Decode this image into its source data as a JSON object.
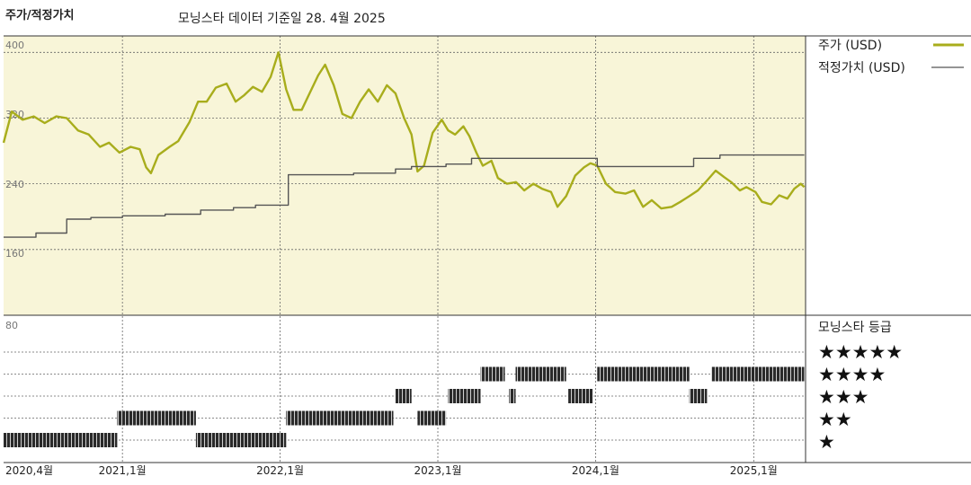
{
  "header": {
    "title": "주가/적정가치",
    "subtitle": "모닝스타 데이터 기준일 28. 4월 2025"
  },
  "chart_data": [
    {
      "type": "line",
      "title": "주가/적정가치",
      "ylim": [
        80,
        420
      ],
      "y_ticks": [
        {
          "value": 400,
          "label": "400"
        },
        {
          "value": 320,
          "label": "320"
        },
        {
          "value": 240,
          "label": "240"
        },
        {
          "value": 160,
          "label": "160"
        }
      ],
      "x_range": [
        "2020-04-01",
        "2025-05-01"
      ],
      "x_ticks": [
        {
          "date": "2020-04-01",
          "label": "2020,4월"
        },
        {
          "date": "2021-01-01",
          "label": "2021,1월"
        },
        {
          "date": "2022-01-01",
          "label": "2022,1월"
        },
        {
          "date": "2023-01-01",
          "label": "2023,1월"
        },
        {
          "date": "2024-01-01",
          "label": "2024,1월"
        },
        {
          "date": "2025-01-01",
          "label": "2025,1월"
        }
      ],
      "grid": true,
      "legend_position": "right",
      "series": [
        {
          "name": "주가 (USD)",
          "color": "#a8ad1c",
          "points": [
            [
              "2020-04-01",
              290
            ],
            [
              "2020-04-20",
              328
            ],
            [
              "2020-05-15",
              318
            ],
            [
              "2020-06-10",
              322
            ],
            [
              "2020-07-05",
              314
            ],
            [
              "2020-08-01",
              322
            ],
            [
              "2020-08-25",
              320
            ],
            [
              "2020-09-20",
              305
            ],
            [
              "2020-10-15",
              300
            ],
            [
              "2020-11-10",
              285
            ],
            [
              "2020-12-01",
              290
            ],
            [
              "2020-12-25",
              278
            ],
            [
              "2021-01-20",
              285
            ],
            [
              "2021-02-10",
              282
            ],
            [
              "2021-02-25",
              260
            ],
            [
              "2021-03-08",
              253
            ],
            [
              "2021-03-25",
              275
            ],
            [
              "2021-04-20",
              285
            ],
            [
              "2021-05-10",
              292
            ],
            [
              "2021-06-05",
              315
            ],
            [
              "2021-06-25",
              340
            ],
            [
              "2021-07-15",
              340
            ],
            [
              "2021-08-05",
              357
            ],
            [
              "2021-08-30",
              362
            ],
            [
              "2021-09-20",
              340
            ],
            [
              "2021-10-10",
              348
            ],
            [
              "2021-10-30",
              358
            ],
            [
              "2021-11-20",
              352
            ],
            [
              "2021-12-10",
              370
            ],
            [
              "2021-12-28",
              400
            ],
            [
              "2022-01-15",
              355
            ],
            [
              "2022-02-01",
              330
            ],
            [
              "2022-02-20",
              330
            ],
            [
              "2022-03-10",
              350
            ],
            [
              "2022-03-30",
              372
            ],
            [
              "2022-04-15",
              385
            ],
            [
              "2022-05-05",
              360
            ],
            [
              "2022-05-25",
              325
            ],
            [
              "2022-06-15",
              320
            ],
            [
              "2022-07-05",
              340
            ],
            [
              "2022-07-25",
              355
            ],
            [
              "2022-08-15",
              340
            ],
            [
              "2022-09-05",
              360
            ],
            [
              "2022-09-25",
              350
            ],
            [
              "2022-10-15",
              320
            ],
            [
              "2022-11-01",
              300
            ],
            [
              "2022-11-15",
              255
            ],
            [
              "2022-11-30",
              262
            ],
            [
              "2022-12-20",
              302
            ],
            [
              "2023-01-10",
              318
            ],
            [
              "2023-01-25",
              305
            ],
            [
              "2023-02-10",
              300
            ],
            [
              "2023-03-01",
              310
            ],
            [
              "2023-03-15",
              298
            ],
            [
              "2023-03-31",
              278
            ],
            [
              "2023-04-15",
              262
            ],
            [
              "2023-05-05",
              268
            ],
            [
              "2023-05-20",
              247
            ],
            [
              "2023-06-10",
              240
            ],
            [
              "2023-07-01",
              242
            ],
            [
              "2023-07-20",
              232
            ],
            [
              "2023-08-10",
              240
            ],
            [
              "2023-08-30",
              234
            ],
            [
              "2023-09-20",
              230
            ],
            [
              "2023-10-05",
              212
            ],
            [
              "2023-10-25",
              225
            ],
            [
              "2023-11-15",
              250
            ],
            [
              "2023-12-05",
              260
            ],
            [
              "2023-12-20",
              265
            ],
            [
              "2024-01-05",
              262
            ],
            [
              "2024-01-25",
              240
            ],
            [
              "2024-02-15",
              230
            ],
            [
              "2024-03-10",
              228
            ],
            [
              "2024-03-30",
              232
            ],
            [
              "2024-04-20",
              212
            ],
            [
              "2024-05-10",
              220
            ],
            [
              "2024-06-01",
              210
            ],
            [
              "2024-06-25",
              212
            ],
            [
              "2024-07-15",
              218
            ],
            [
              "2024-08-05",
              225
            ],
            [
              "2024-08-25",
              232
            ],
            [
              "2024-09-15",
              244
            ],
            [
              "2024-10-05",
              256
            ],
            [
              "2024-10-25",
              248
            ],
            [
              "2024-11-10",
              242
            ],
            [
              "2024-11-30",
              232
            ],
            [
              "2024-12-15",
              236
            ],
            [
              "2025-01-05",
              230
            ],
            [
              "2025-01-20",
              218
            ],
            [
              "2025-02-10",
              215
            ],
            [
              "2025-03-01",
              226
            ],
            [
              "2025-03-20",
              222
            ],
            [
              "2025-04-05",
              234
            ],
            [
              "2025-04-20",
              240
            ],
            [
              "2025-04-28",
              236
            ]
          ]
        },
        {
          "name": "적정가치 (USD)",
          "color": "#555555",
          "step": true,
          "points": [
            [
              "2020-04-01",
              175
            ],
            [
              "2020-06-15",
              180
            ],
            [
              "2020-08-25",
              197
            ],
            [
              "2020-10-20",
              199
            ],
            [
              "2021-01-01",
              201
            ],
            [
              "2021-04-10",
              203
            ],
            [
              "2021-07-01",
              208
            ],
            [
              "2021-09-15",
              211
            ],
            [
              "2021-11-05",
              214
            ],
            [
              "2022-01-20",
              251
            ],
            [
              "2022-06-20",
              253
            ],
            [
              "2022-09-25",
              258
            ],
            [
              "2022-11-01",
              261
            ],
            [
              "2023-01-20",
              264
            ],
            [
              "2023-03-20",
              271
            ],
            [
              "2023-11-10",
              271
            ],
            [
              "2024-01-05",
              261
            ],
            [
              "2024-06-20",
              261
            ],
            [
              "2024-08-15",
              271
            ],
            [
              "2024-09-20",
              271
            ],
            [
              "2024-10-15",
              275
            ],
            [
              "2025-04-28",
              275
            ]
          ]
        }
      ]
    },
    {
      "type": "bar",
      "title": "모닝스타 등급",
      "rating_levels": [
        "★★★★★",
        "★★★★",
        "★★★",
        "★★",
        "★"
      ],
      "tick_label": "80",
      "rating_periods": [
        {
          "start": "2020-04-01",
          "end": "2020-12-20",
          "stars": 1
        },
        {
          "start": "2020-12-20",
          "end": "2021-06-20",
          "stars": 2
        },
        {
          "start": "2021-06-20",
          "end": "2022-01-15",
          "stars": 1
        },
        {
          "start": "2022-01-15",
          "end": "2022-09-20",
          "stars": 2
        },
        {
          "start": "2022-09-25",
          "end": "2022-11-01",
          "stars": 3
        },
        {
          "start": "2022-11-15",
          "end": "2023-01-20",
          "stars": 2
        },
        {
          "start": "2023-01-25",
          "end": "2023-04-10",
          "stars": 3
        },
        {
          "start": "2023-04-10",
          "end": "2023-06-05",
          "stars": 4
        },
        {
          "start": "2023-06-15",
          "end": "2023-06-30",
          "stars": 3
        },
        {
          "start": "2023-06-30",
          "end": "2023-10-25",
          "stars": 4
        },
        {
          "start": "2023-10-30",
          "end": "2023-12-25",
          "stars": 3
        },
        {
          "start": "2024-01-05",
          "end": "2024-08-05",
          "stars": 4
        },
        {
          "start": "2024-08-05",
          "end": "2024-09-15",
          "stars": 3
        },
        {
          "start": "2024-09-25",
          "end": "2025-04-28",
          "stars": 4
        }
      ],
      "x_ticks": [
        "2020,4월",
        "2021,1월",
        "2022,1월",
        "2023,1월",
        "2024,1월",
        "2025,1월"
      ]
    }
  ],
  "legend": {
    "price_label": "주가 (USD)",
    "fair_value_label": "적정가치 (USD)",
    "price_color": "#a8ad1c",
    "fair_value_color": "#555555",
    "rating_title": "모닝스타 등급",
    "rating_stars": [
      "★★★★★",
      "★★★★",
      "★★★",
      "★★",
      "★"
    ]
  },
  "colors": {
    "plot_background": "#f8f5d8",
    "rating_bar": "#2a2a2a"
  }
}
